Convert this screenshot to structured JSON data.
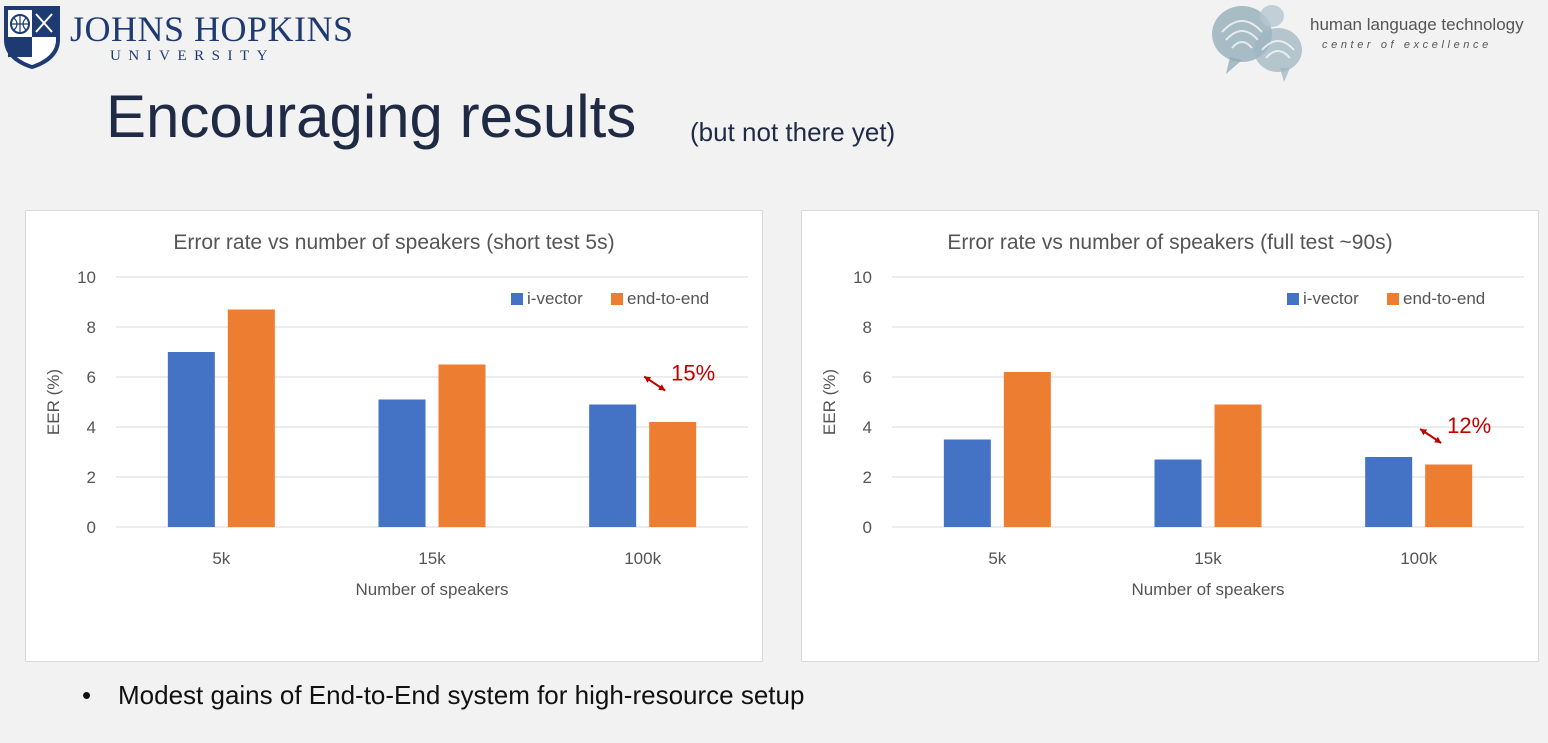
{
  "header": {
    "university_name": "JOHNS HOPKINS",
    "university_sub": "UNIVERSITY",
    "hlt_name": "human language technology",
    "hlt_sub": "center of excellence"
  },
  "slide": {
    "title": "Encouraging results",
    "subtitle": "(but not there yet)",
    "bullet": "Modest gains of End-to-End system for high-resource setup"
  },
  "colors": {
    "ivector": "#4472c4",
    "end_to_end": "#ed7d31",
    "annotation": "#c00000",
    "grid": "#d9d9d9",
    "title": "#1f2a44"
  },
  "chart_data": [
    {
      "type": "bar",
      "title": "Error rate vs number of speakers (short test 5s)",
      "xlabel": "Number of speakers",
      "ylabel": "EER (%)",
      "ylim": [
        0,
        10
      ],
      "yticks": [
        0,
        2,
        4,
        6,
        8,
        10
      ],
      "categories": [
        "5k",
        "15k",
        "100k"
      ],
      "grid": true,
      "legend": "top-right",
      "series": [
        {
          "name": "i-vector",
          "values": [
            7.0,
            5.1,
            4.9
          ]
        },
        {
          "name": "end-to-end",
          "values": [
            8.7,
            6.5,
            4.2
          ]
        }
      ],
      "annotation": {
        "text": "15%",
        "category": "100k"
      }
    },
    {
      "type": "bar",
      "title": "Error rate vs number of speakers (full test ~90s)",
      "xlabel": "Number of speakers",
      "ylabel": "EER (%)",
      "ylim": [
        0,
        10
      ],
      "yticks": [
        0,
        2,
        4,
        6,
        8,
        10
      ],
      "categories": [
        "5k",
        "15k",
        "100k"
      ],
      "grid": true,
      "legend": "top-right",
      "series": [
        {
          "name": "i-vector",
          "values": [
            3.5,
            2.7,
            2.8
          ]
        },
        {
          "name": "end-to-end",
          "values": [
            6.2,
            4.9,
            2.5
          ]
        }
      ],
      "annotation": {
        "text": "12%",
        "category": "100k"
      }
    }
  ]
}
